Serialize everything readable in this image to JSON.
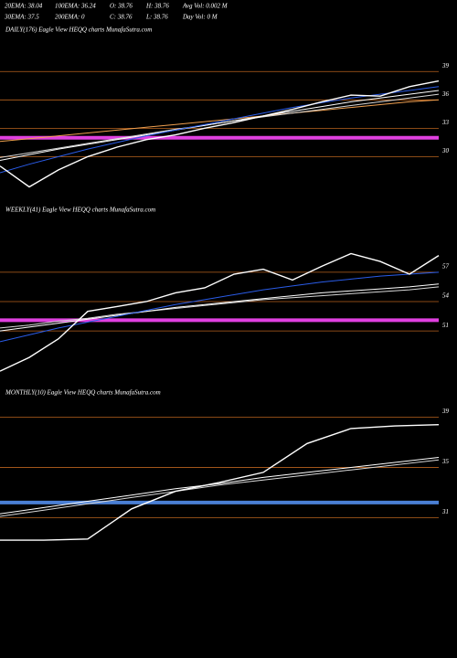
{
  "header": {
    "rows": [
      [
        "20EMA: 38.04",
        "100EMA: 36.24",
        "O: 38.76",
        "H: 38.76",
        "Avg Vol: 0.002 M"
      ],
      [
        "30EMA: 37.5",
        "200EMA: 0",
        "C: 38.76",
        "L: 38.76",
        "Day Vol: 0 M"
      ]
    ]
  },
  "chart_data": [
    {
      "type": "line",
      "title": "DAILY(176) Eagle  View  HEQQ charts MunafaSutra.com",
      "ylim": [
        25.3,
        42.7
      ],
      "yticks": [
        39,
        36,
        33,
        30
      ],
      "grid": true,
      "grid_color": "#b8621e",
      "levels": [
        {
          "value": 32,
          "color": "#e040e0"
        }
      ],
      "series": [
        {
          "color": "#f0a050",
          "values": [
            31.6,
            31.9,
            32.2,
            32.5,
            32.8,
            33.1,
            33.4,
            33.7,
            34.0,
            34.3,
            34.6,
            34.9,
            35.2,
            35.5,
            35.8,
            36.0
          ]
        },
        {
          "color": "#d8d8d8",
          "values": [
            29.9,
            30.4,
            30.9,
            31.4,
            31.9,
            32.4,
            32.9,
            33.3,
            33.8,
            34.2,
            34.6,
            35.0,
            35.4,
            35.8,
            36.2,
            36.6
          ]
        },
        {
          "color": "#ffffff",
          "values": [
            29.6,
            30.2,
            30.8,
            31.3,
            31.8,
            32.3,
            32.8,
            33.3,
            33.8,
            34.3,
            34.8,
            35.3,
            35.8,
            36.2,
            36.6,
            37.0
          ]
        },
        {
          "color": "#2a5ce8",
          "values": [
            28.3,
            29.2,
            30.0,
            30.8,
            31.5,
            32.2,
            32.8,
            33.4,
            34.0,
            34.6,
            35.2,
            35.7,
            36.2,
            36.6,
            37.0,
            37.4
          ]
        },
        {
          "color": "#ffffff",
          "values": [
            29.0,
            26.8,
            28.6,
            30.0,
            31.0,
            31.8,
            32.3,
            33.0,
            33.6,
            34.3,
            35.0,
            35.8,
            36.5,
            36.4,
            37.4,
            38.0
          ]
        }
      ]
    },
    {
      "type": "line",
      "title": "WEEKLY(41) Eagle  View  HEQQ charts MunafaSutra.com",
      "ylim": [
        45.6,
        62.4
      ],
      "yticks": [
        57,
        54,
        51
      ],
      "grid": true,
      "grid_color": "#b8621e",
      "levels": [
        {
          "value": 52.1,
          "color": "#e040e0"
        }
      ],
      "series": [
        {
          "color": "#d8d8d8",
          "values": [
            51.3,
            51.6,
            52.0,
            52.3,
            52.7,
            53.0,
            53.3,
            53.6,
            53.9,
            54.2,
            54.4,
            54.6,
            54.8,
            55.0,
            55.2,
            55.5
          ]
        },
        {
          "color": "#ffffff",
          "values": [
            51.0,
            51.4,
            51.8,
            52.2,
            52.6,
            53.0,
            53.4,
            53.7,
            54.0,
            54.3,
            54.6,
            54.9,
            55.1,
            55.3,
            55.5,
            55.8
          ]
        },
        {
          "color": "#2a5ce8",
          "values": [
            49.9,
            50.6,
            51.3,
            51.9,
            52.5,
            53.1,
            53.7,
            54.2,
            54.7,
            55.2,
            55.6,
            56.0,
            56.3,
            56.6,
            56.8,
            57.0
          ]
        },
        {
          "color": "#ffffff",
          "values": [
            46.9,
            48.3,
            50.2,
            53.0,
            53.5,
            54.0,
            54.9,
            55.4,
            56.8,
            57.3,
            56.2,
            57.6,
            58.9,
            58.1,
            56.8,
            58.7
          ]
        }
      ]
    },
    {
      "type": "line",
      "title": "MONTHLY(10) Eagle  View  HEQQ charts MunafaSutra.com",
      "ylim": [
        27.1,
        40.2
      ],
      "yticks": [
        39,
        35,
        31
      ],
      "grid": true,
      "grid_color": "#b8621e",
      "levels": [
        {
          "value": 32.2,
          "color": "#4a7fd4"
        }
      ],
      "series": [
        {
          "color": "#d8d8d8",
          "values": [
            31.1,
            31.6,
            32.1,
            32.6,
            33.1,
            33.6,
            34.0,
            34.4,
            34.8,
            35.2,
            35.6
          ]
        },
        {
          "color": "#ffffff",
          "values": [
            31.3,
            31.8,
            32.3,
            32.8,
            33.3,
            33.7,
            34.2,
            34.6,
            35.0,
            35.4,
            35.8
          ]
        },
        {
          "color": "#ffffff",
          "values": [
            29.2,
            29.2,
            29.3,
            31.7,
            33.1,
            33.8,
            34.6,
            36.9,
            38.1,
            38.3,
            38.4
          ]
        }
      ]
    }
  ]
}
